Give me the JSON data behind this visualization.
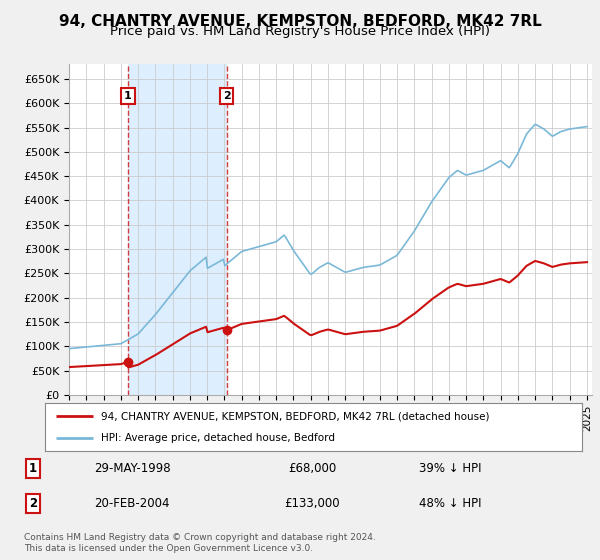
{
  "title": "94, CHANTRY AVENUE, KEMPSTON, BEDFORD, MK42 7RL",
  "subtitle": "Price paid vs. HM Land Registry's House Price Index (HPI)",
  "ylim": [
    0,
    680000
  ],
  "yticks": [
    0,
    50000,
    100000,
    150000,
    200000,
    250000,
    300000,
    350000,
    400000,
    450000,
    500000,
    550000,
    600000,
    650000
  ],
  "ytick_labels": [
    "£0",
    "£50K",
    "£100K",
    "£150K",
    "£200K",
    "£250K",
    "£300K",
    "£350K",
    "£400K",
    "£450K",
    "£500K",
    "£550K",
    "£600K",
    "£650K"
  ],
  "hpi_color": "#7ab8d8",
  "price_color": "#cc1111",
  "sale_1_date": 1998.41,
  "sale_1_price": 68000,
  "sale_2_date": 2004.13,
  "sale_2_price": 133000,
  "legend_entry_1": "94, CHANTRY AVENUE, KEMPSTON, BEDFORD, MK42 7RL (detached house)",
  "legend_entry_2": "HPI: Average price, detached house, Bedford",
  "table_row_1_num": "1",
  "table_row_1_date": "29-MAY-1998",
  "table_row_1_price": "£68,000",
  "table_row_1_hpi": "39% ↓ HPI",
  "table_row_2_num": "2",
  "table_row_2_date": "20-FEB-2004",
  "table_row_2_price": "£133,000",
  "table_row_2_hpi": "48% ↓ HPI",
  "footer": "Contains HM Land Registry data © Crown copyright and database right 2024.\nThis data is licensed under the Open Government Licence v3.0.",
  "background_color": "#f0f0f0",
  "plot_bg_color": "#ffffff",
  "grid_color": "#cccccc",
  "shade_color": "#ddeeff",
  "title_fontsize": 11,
  "subtitle_fontsize": 9.5
}
